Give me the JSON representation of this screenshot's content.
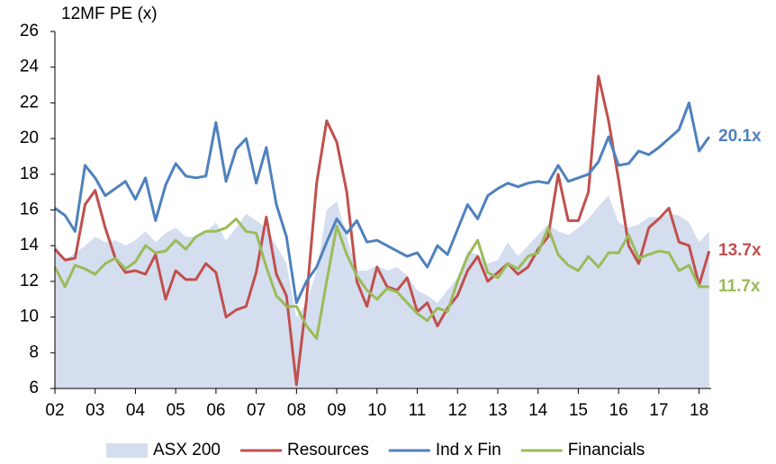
{
  "chart_data": {
    "type": "line",
    "y_axis_title": "12MF PE (x)",
    "x": [
      2002,
      2002.25,
      2002.5,
      2002.75,
      2003,
      2003.25,
      2003.5,
      2003.75,
      2004,
      2004.25,
      2004.5,
      2004.75,
      2005,
      2005.25,
      2005.5,
      2005.75,
      2006,
      2006.25,
      2006.5,
      2006.75,
      2007,
      2007.25,
      2007.5,
      2007.75,
      2008,
      2008.25,
      2008.5,
      2008.75,
      2009,
      2009.25,
      2009.5,
      2009.75,
      2010,
      2010.25,
      2010.5,
      2010.75,
      2011,
      2011.25,
      2011.5,
      2011.75,
      2012,
      2012.25,
      2012.5,
      2012.75,
      2013,
      2013.25,
      2013.5,
      2013.75,
      2014,
      2014.25,
      2014.5,
      2014.75,
      2015,
      2015.25,
      2015.5,
      2015.75,
      2016,
      2016.25,
      2016.5,
      2016.75,
      2017,
      2017.25,
      2017.5,
      2017.75,
      2018,
      2018.25
    ],
    "xlim": [
      2002,
      2018.3
    ],
    "xticks": [
      {
        "value": 2002,
        "label": "02"
      },
      {
        "value": 2003,
        "label": "03"
      },
      {
        "value": 2004,
        "label": "04"
      },
      {
        "value": 2005,
        "label": "05"
      },
      {
        "value": 2006,
        "label": "06"
      },
      {
        "value": 2007,
        "label": "07"
      },
      {
        "value": 2008,
        "label": "08"
      },
      {
        "value": 2009,
        "label": "09"
      },
      {
        "value": 2010,
        "label": "10"
      },
      {
        "value": 2011,
        "label": "11"
      },
      {
        "value": 2012,
        "label": "12"
      },
      {
        "value": 2013,
        "label": "13"
      },
      {
        "value": 2014,
        "label": "14"
      },
      {
        "value": 2015,
        "label": "15"
      },
      {
        "value": 2016,
        "label": "16"
      },
      {
        "value": 2017,
        "label": "17"
      },
      {
        "value": 2018,
        "label": "18"
      }
    ],
    "ylim": [
      6,
      26
    ],
    "yticks": [
      6,
      8,
      10,
      12,
      14,
      16,
      18,
      20,
      22,
      24,
      26
    ],
    "grid": false,
    "legend": "bottom",
    "series": [
      {
        "name": "ASX 200",
        "kind": "area",
        "color": "#d5deef",
        "values": [
          14.1,
          13.2,
          13.6,
          14.0,
          14.5,
          14.2,
          14.3,
          14.0,
          14.3,
          14.8,
          14.2,
          14.7,
          15.0,
          14.5,
          14.5,
          14.8,
          15.3,
          14.3,
          15.0,
          15.8,
          15.4,
          15.0,
          14.0,
          13.0,
          10.0,
          10.8,
          12.6,
          16.0,
          16.5,
          14.5,
          12.6,
          12.6,
          12.9,
          12.6,
          12.8,
          12.3,
          11.5,
          11.2,
          10.8,
          11.5,
          12.2,
          13.7,
          13.5,
          13.0,
          13.2,
          14.2,
          13.4,
          14.0,
          14.6,
          15.2,
          14.8,
          14.6,
          15.0,
          15.5,
          16.2,
          16.8,
          15.3,
          15.0,
          15.2,
          15.6,
          15.6,
          15.8,
          15.7,
          15.3,
          14.2,
          14.8
        ]
      },
      {
        "name": "Resources",
        "kind": "line",
        "color": "#c0504d",
        "end_label": "13.7x",
        "values": [
          13.8,
          13.2,
          13.3,
          16.3,
          17.1,
          15.0,
          13.3,
          12.5,
          12.6,
          12.4,
          13.5,
          11.0,
          12.6,
          12.1,
          12.1,
          13.0,
          12.5,
          10.0,
          10.4,
          10.6,
          12.5,
          15.6,
          12.4,
          11.2,
          6.2,
          11.0,
          17.5,
          21.0,
          19.8,
          17.0,
          12.0,
          10.6,
          12.8,
          11.7,
          11.5,
          12.2,
          10.3,
          10.8,
          9.5,
          10.5,
          11.2,
          12.6,
          13.4,
          12.0,
          12.5,
          13.0,
          12.4,
          12.8,
          13.8,
          14.5,
          18.0,
          15.4,
          15.4,
          17.0,
          23.5,
          21.0,
          17.7,
          14.0,
          13.0,
          15.0,
          15.5,
          16.1,
          14.2,
          14.0,
          11.8,
          13.7
        ]
      },
      {
        "name": "Ind x Fin",
        "kind": "line",
        "color": "#4f81bd",
        "end_label": "20.1x",
        "values": [
          16.1,
          15.7,
          14.8,
          18.5,
          17.8,
          16.8,
          17.2,
          17.6,
          16.6,
          17.8,
          15.4,
          17.4,
          18.6,
          17.9,
          17.8,
          17.9,
          20.9,
          17.6,
          19.4,
          20.0,
          17.5,
          19.5,
          16.3,
          14.5,
          10.8,
          12.0,
          12.8,
          14.2,
          15.5,
          14.7,
          15.4,
          14.2,
          14.3,
          14.0,
          13.7,
          13.4,
          13.6,
          12.8,
          14.0,
          13.5,
          14.9,
          16.3,
          15.5,
          16.8,
          17.2,
          17.5,
          17.3,
          17.5,
          17.6,
          17.5,
          18.5,
          17.6,
          17.8,
          18.0,
          18.7,
          20.1,
          18.5,
          18.6,
          19.3,
          19.1,
          19.5,
          20.0,
          20.5,
          22.0,
          19.3,
          20.1
        ]
      },
      {
        "name": "Financials",
        "kind": "line",
        "color": "#9bbb59",
        "end_label": "11.7x",
        "values": [
          12.8,
          11.7,
          12.9,
          12.7,
          12.4,
          13.0,
          13.3,
          12.7,
          13.1,
          14.0,
          13.6,
          13.7,
          14.3,
          13.8,
          14.5,
          14.8,
          14.8,
          15.0,
          15.5,
          14.8,
          14.7,
          12.8,
          11.2,
          10.6,
          10.6,
          9.5,
          8.8,
          12.0,
          15.1,
          13.5,
          12.3,
          11.5,
          11.0,
          11.6,
          11.4,
          10.8,
          10.2,
          9.8,
          10.5,
          10.3,
          12.0,
          13.4,
          14.3,
          12.5,
          12.2,
          13.0,
          12.7,
          13.4,
          13.6,
          15.0,
          13.5,
          12.9,
          12.6,
          13.4,
          12.8,
          13.6,
          13.6,
          14.6,
          13.3,
          13.5,
          13.7,
          13.6,
          12.6,
          12.9,
          11.7,
          11.7
        ]
      }
    ]
  }
}
